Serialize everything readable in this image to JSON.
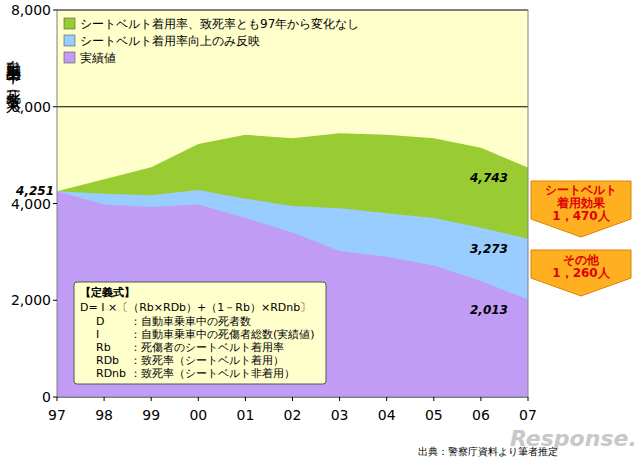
{
  "chart_data": {
    "type": "area",
    "stacked": false,
    "grid": true,
    "legend": "top-left",
    "y_label": "自動車乗車中の死者数（人）",
    "categories": [
      "97",
      "98",
      "99",
      "00",
      "01",
      "02",
      "03",
      "04",
      "05",
      "06",
      "07"
    ],
    "ylim": [
      0,
      8000
    ],
    "yticks": [
      0,
      {
        "value": 2000,
        "label": "2,000"
      },
      {
        "value": 4000,
        "label": "4,000"
      },
      {
        "value": 6000,
        "label": "6,000"
      },
      {
        "value": 8000,
        "label": "8,000"
      }
    ],
    "series": [
      {
        "name": "シートベルト着用率、致死率とも97年から変化なし",
        "color": "#99cc33",
        "values": [
          4251,
          4500,
          4750,
          5230,
          5420,
          5350,
          5450,
          5420,
          5350,
          5150,
          4743
        ],
        "value_labels": [
          null,
          null,
          null,
          null,
          null,
          null,
          null,
          null,
          null,
          null,
          "4,743"
        ]
      },
      {
        "name": "シートベルト着用率向上のみ反映",
        "color": "#99ccff",
        "values": [
          4251,
          4200,
          4170,
          4280,
          4100,
          3950,
          3900,
          3800,
          3700,
          3500,
          3273
        ],
        "value_labels": [
          null,
          null,
          null,
          null,
          null,
          null,
          null,
          null,
          null,
          null,
          "3,273"
        ]
      },
      {
        "name": "実績値",
        "color": "#c09cf5",
        "values": [
          4251,
          3980,
          3930,
          3980,
          3700,
          3400,
          3020,
          2900,
          2720,
          2400,
          2013
        ],
        "value_labels": [
          "4,251",
          null,
          null,
          null,
          null,
          null,
          null,
          null,
          null,
          null,
          "2,013"
        ]
      }
    ],
    "annotations": [
      {
        "lines": [
          "シートベルト",
          "着用効果",
          "1，470人"
        ]
      },
      {
        "lines": [
          "その他",
          "1，260人"
        ]
      }
    ],
    "formula": {
      "title": "【定義式】",
      "equation": "D= I ×〔（Rb×RDb）+（1－Rb）×RDnb〕",
      "definitions": [
        [
          "D",
          "：自動車乗車中の死者数"
        ],
        [
          "I",
          "：自動車乗車中の死傷者総数(実績値)"
        ],
        [
          "Rb",
          "：死傷者のシートベルト着用率"
        ],
        [
          "RDb",
          "：致死率（シートベルト着用）"
        ],
        [
          "RDnb",
          "：致死率（シートベルト非着用）"
        ]
      ]
    },
    "source": "出典：警察庁資料より筆者推定",
    "watermark": "Response."
  }
}
